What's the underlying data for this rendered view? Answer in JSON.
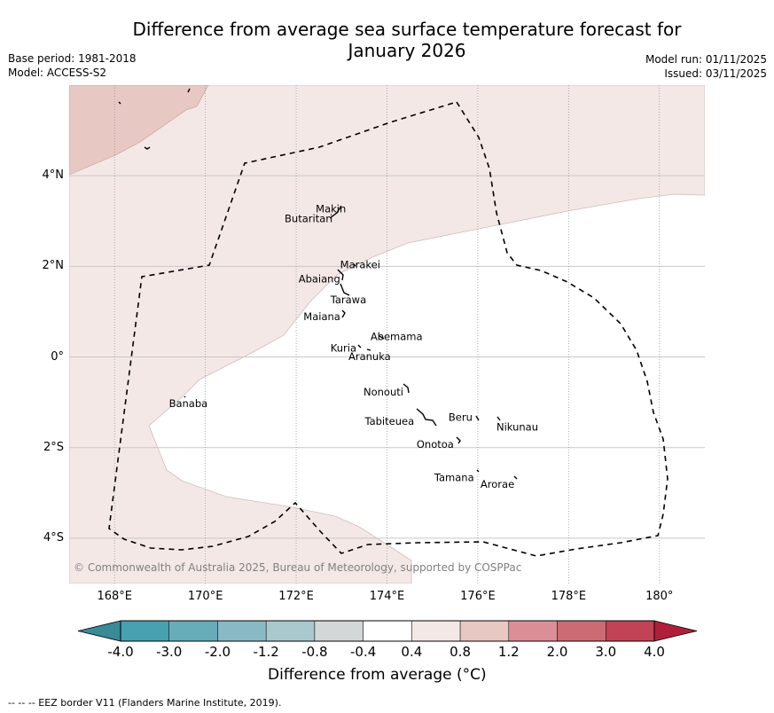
{
  "header": {
    "title_line1": "Difference from average sea surface temperature forecast for",
    "title_line2": "January 2026",
    "base_period": "Base period: 1981-2018",
    "model": "Model: ACCESS-S2",
    "model_run": "Model run: 01/11/2025",
    "issued": "Issued: 03/11/2025"
  },
  "map": {
    "extent": {
      "lon_min": 167.0,
      "lon_max": 181.0,
      "lat_min": -5.0,
      "lat_max": 6.0
    },
    "lat_ticks": [
      {
        "value": 4,
        "label": "4°N"
      },
      {
        "value": 2,
        "label": "2°N"
      },
      {
        "value": 0,
        "label": "0°"
      },
      {
        "value": -2,
        "label": "2°S"
      },
      {
        "value": -4,
        "label": "4°S"
      }
    ],
    "lon_ticks": [
      {
        "value": 168,
        "label": "168°E"
      },
      {
        "value": 170,
        "label": "170°E"
      },
      {
        "value": 172,
        "label": "172°E"
      },
      {
        "value": 174,
        "label": "174°E"
      },
      {
        "value": 176,
        "label": "176°E"
      },
      {
        "value": 178,
        "label": "178°E"
      },
      {
        "value": 180,
        "label": "180°"
      }
    ],
    "islands": [
      {
        "name": "Makin",
        "lon": 172.9,
        "lat": 3.25
      },
      {
        "name": "Butaritari",
        "lon": 172.8,
        "lat": 3.07
      },
      {
        "name": "Marakei",
        "lon": 173.3,
        "lat": 2.0
      },
      {
        "name": "Abaiang",
        "lon": 172.95,
        "lat": 1.8
      },
      {
        "name": "Tarawa",
        "lon": 172.97,
        "lat": 1.4
      },
      {
        "name": "Maiana",
        "lon": 173.0,
        "lat": 0.95
      },
      {
        "name": "Abemama",
        "lon": 173.85,
        "lat": 0.45
      },
      {
        "name": "Kuria",
        "lon": 173.4,
        "lat": 0.22
      },
      {
        "name": "Aranuka",
        "lon": 173.6,
        "lat": 0.17
      },
      {
        "name": "Nonouti",
        "lon": 174.4,
        "lat": -0.65
      },
      {
        "name": "Tabiteuea",
        "lon": 174.8,
        "lat": -1.3
      },
      {
        "name": "Beru",
        "lon": 176.0,
        "lat": -1.35
      },
      {
        "name": "Nikunau",
        "lon": 176.45,
        "lat": -1.35
      },
      {
        "name": "Onotoa",
        "lon": 175.55,
        "lat": -1.85
      },
      {
        "name": "Tamana",
        "lon": 175.98,
        "lat": -2.5
      },
      {
        "name": "Arorae",
        "lon": 176.82,
        "lat": -2.65
      },
      {
        "name": "Banaba",
        "lon": 169.53,
        "lat": -0.87
      }
    ],
    "copyright": "© Commonwealth of Australia 2025, Bureau of Meteorology, supported by COSPPac"
  },
  "colorbar": {
    "label": "Difference from average (°C)",
    "boundaries": [
      "-4.0",
      "-3.0",
      "-2.0",
      "-1.2",
      "-0.8",
      "-0.4",
      "0.4",
      "0.8",
      "1.2",
      "2.0",
      "3.0",
      "4.0"
    ],
    "colors": [
      "#3a8a98",
      "#47a1b1",
      "#67acb9",
      "#89b9c4",
      "#a9c9ce",
      "#d3d7d8",
      "#ffffff",
      "#f4e8e6",
      "#e8c8c3",
      "#da8f96",
      "#cd6b74",
      "#c24355",
      "#b01f3a"
    ]
  },
  "legend": {
    "eez_note": "--  --  -- EEZ border V11 (Flanders Marine Institute, 2019)."
  }
}
